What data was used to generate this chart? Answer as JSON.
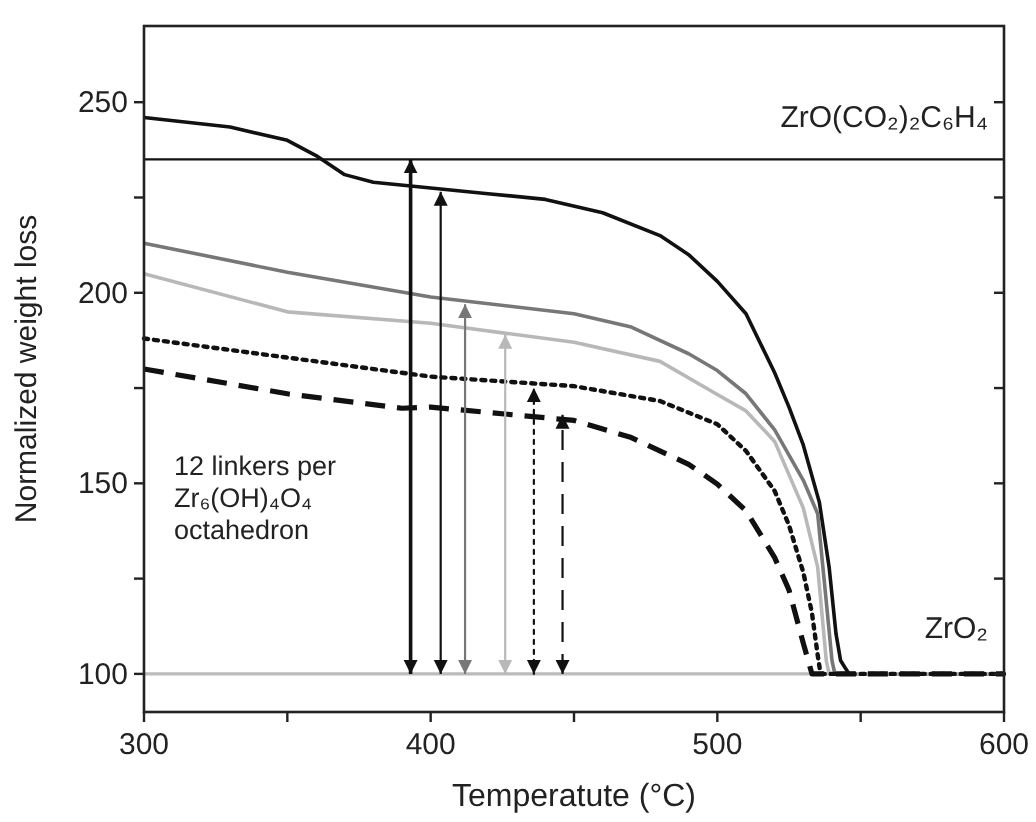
{
  "chart_data": {
    "type": "line",
    "xlabel": "Temperatute (°C)",
    "ylabel": "Normalized weight loss",
    "xlim": [
      300,
      600
    ],
    "xticks": [
      300,
      {
        "value": 350,
        "label": null
      },
      400,
      {
        "value": 450,
        "label": null
      },
      500,
      {
        "value": 550,
        "label": null
      },
      600
    ],
    "ylim": [
      90,
      270
    ],
    "yticks": [
      100,
      {
        "value": 125,
        "label": null
      },
      150,
      {
        "value": 175,
        "label": null
      },
      200,
      {
        "value": 225,
        "label": null
      },
      250
    ],
    "grid": false,
    "marker": "none",
    "ref_lines": [
      {
        "axis": "y",
        "value": 235,
        "label": "ZrO(CO₂)₂C₆H₄",
        "color": "#111111"
      },
      {
        "axis": "y",
        "value": 100,
        "label": "ZrO₂",
        "color": "#bbbbbb"
      }
    ],
    "annotations": [
      "12 linkers per Zr₆(OH)₄O₄ octahedron"
    ],
    "series": [
      {
        "color": "#111111",
        "line_style": "solid",
        "x": [
          300,
          330,
          350,
          360,
          370,
          380,
          400,
          420,
          440,
          460,
          480,
          490,
          500,
          510,
          520,
          525,
          530,
          535.6,
          539,
          541.4,
          543,
          544.4,
          546,
          600
        ],
        "values": [
          246,
          243.5,
          240,
          236,
          231,
          229,
          227.5,
          226,
          224.5,
          221,
          215,
          210,
          203,
          194.5,
          179,
          170,
          160,
          145,
          128,
          110.5,
          103.5,
          101.8,
          100,
          100
        ]
      },
      {
        "color": "#777777",
        "line_style": "solid",
        "x": [
          300,
          350,
          400,
          450,
          470,
          490,
          500,
          510,
          520,
          530,
          535,
          538,
          540,
          541,
          600
        ],
        "values": [
          213,
          205.4,
          198.9,
          194.5,
          191,
          184,
          179.6,
          173.5,
          164,
          150.8,
          142,
          119,
          103.5,
          100,
          100
        ]
      },
      {
        "color": "#b8b8b8",
        "line_style": "solid",
        "x": [
          300,
          350,
          400,
          450,
          480,
          500,
          510,
          520,
          530,
          535,
          538,
          539,
          600
        ],
        "values": [
          205,
          195,
          192,
          187,
          182,
          173.3,
          169,
          161,
          143.5,
          128,
          103.5,
          100,
          100
        ]
      },
      {
        "color": "#111111",
        "line_style": "dotted",
        "x": [
          300,
          350,
          400,
          450,
          480,
          500,
          510,
          520,
          525,
          530,
          533,
          535,
          536,
          600
        ],
        "values": [
          188,
          183,
          178,
          175.5,
          171.6,
          165.5,
          158.5,
          148,
          139,
          126.6,
          116,
          105,
          100,
          100
        ]
      },
      {
        "color": "#111111",
        "line_style": "dashed",
        "x": [
          300,
          350,
          390,
          400,
          450,
          470,
          490,
          500,
          510,
          520,
          525,
          530,
          533,
          600
        ],
        "values": [
          180,
          173.5,
          169.7,
          170,
          166.5,
          162,
          155,
          149.8,
          142.8,
          130.5,
          122,
          108,
          100,
          100
        ]
      },
      {
        "color": "#111111",
        "line_style": "solid",
        "x": [
          393,
          393
        ],
        "values": [
          100,
          235
        ]
      },
      {
        "color": "#111111",
        "line_style": "solid",
        "x": [
          403.5,
          403.5
        ],
        "values": [
          100,
          226.5
        ]
      },
      {
        "color": "#777777",
        "line_style": "solid",
        "x": [
          412,
          412
        ],
        "values": [
          100,
          197
        ]
      },
      {
        "color": "#b8b8b8",
        "line_style": "solid",
        "x": [
          426,
          426
        ],
        "values": [
          100,
          189
        ]
      },
      {
        "color": "#111111",
        "line_style": "dotted",
        "x": [
          436,
          436
        ],
        "values": [
          100,
          175
        ]
      },
      {
        "color": "#111111",
        "line_style": "dashed",
        "x": [
          446,
          446
        ],
        "values": [
          100,
          168
        ]
      }
    ]
  }
}
